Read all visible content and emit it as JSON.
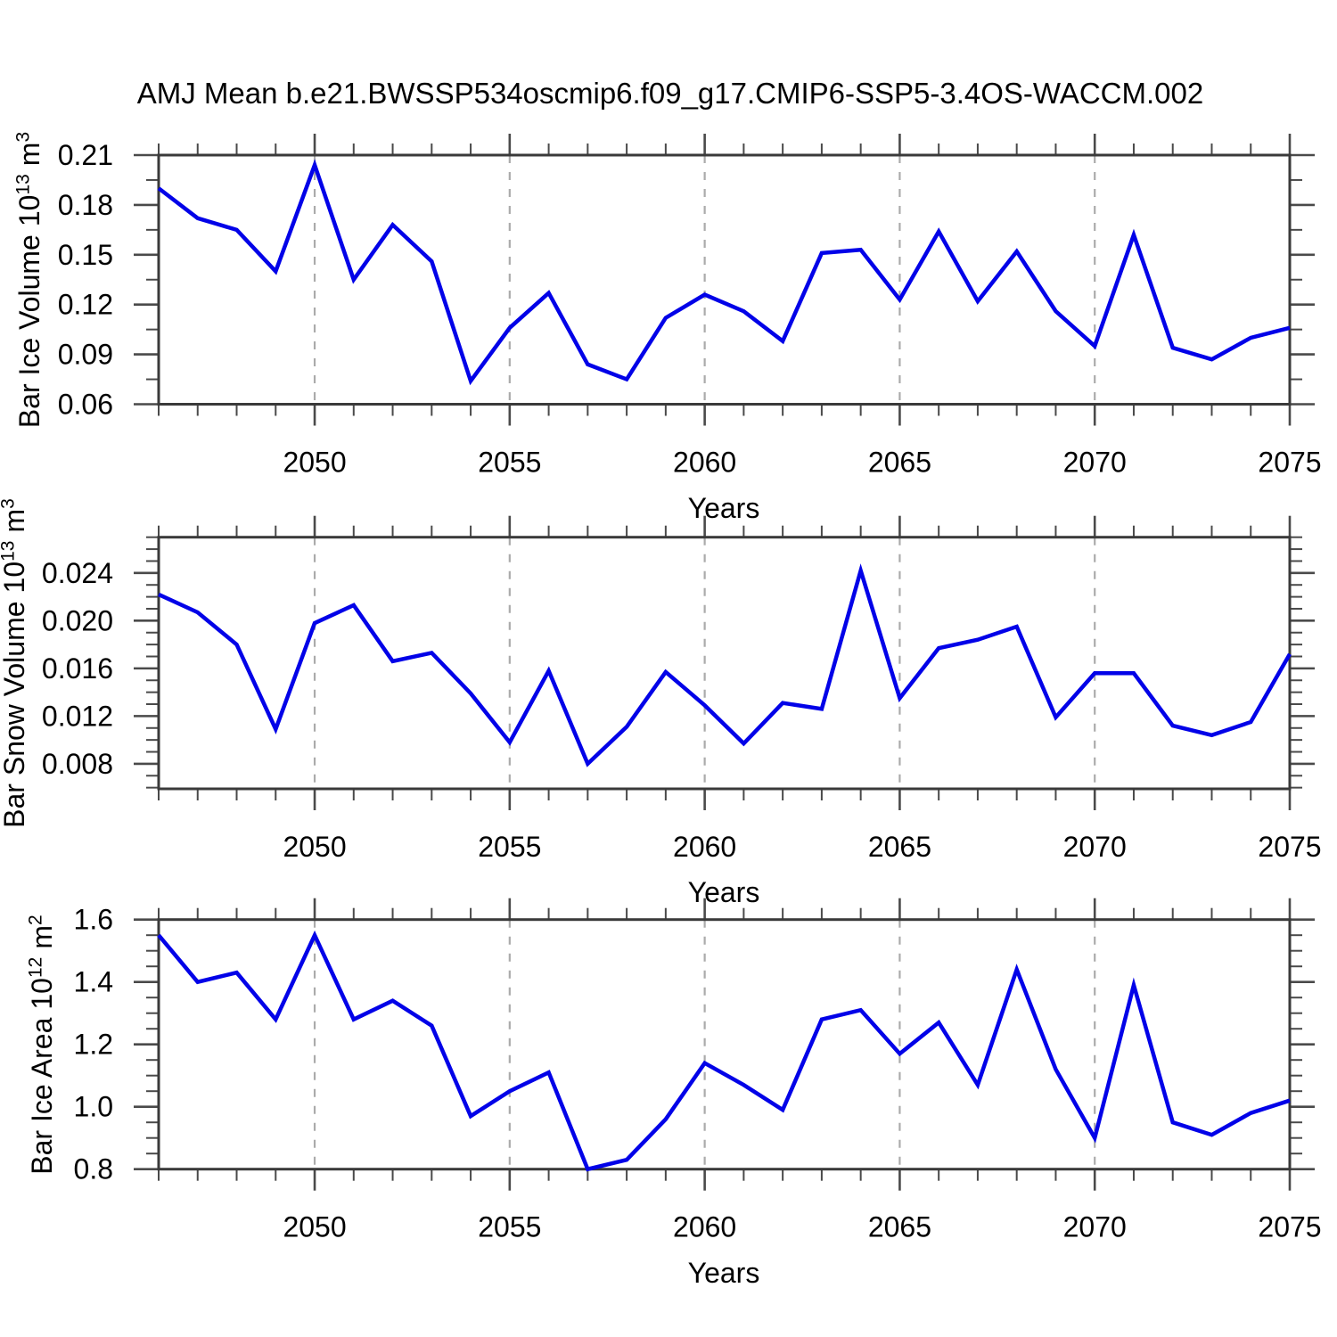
{
  "title": "AMJ Mean b.e21.BWSSP534oscmip6.f09_g17.CMIP6-SSP5-3.4OS-WACCM.002",
  "line_color": "#0202e8",
  "grid_color": "#ababab",
  "axis_color": "#3a3a3a",
  "chart_data": [
    {
      "type": "line",
      "xlabel": "Years",
      "ylabel_text": "Bar Ice Volume",
      "ylabel_exp_base": "10",
      "ylabel_exp": "13",
      "ylabel_unit": "m",
      "ylabel_unit_exp": "3",
      "x_start": 2046,
      "x_end": 2075,
      "x": [
        2046,
        2047,
        2048,
        2049,
        2050,
        2051,
        2052,
        2053,
        2054,
        2055,
        2056,
        2057,
        2058,
        2059,
        2060,
        2061,
        2062,
        2063,
        2064,
        2065,
        2066,
        2067,
        2068,
        2069,
        2070,
        2071,
        2072,
        2073,
        2074,
        2075
      ],
      "values": [
        0.19,
        0.172,
        0.165,
        0.14,
        0.204,
        0.135,
        0.168,
        0.146,
        0.074,
        0.106,
        0.127,
        0.084,
        0.075,
        0.112,
        0.126,
        0.116,
        0.098,
        0.151,
        0.153,
        0.123,
        0.164,
        0.122,
        0.152,
        0.116,
        0.095,
        0.162,
        0.094,
        0.087,
        0.1,
        0.106
      ],
      "ylim": [
        0.06,
        0.21
      ],
      "yticks": [
        0.06,
        0.09,
        0.12,
        0.15,
        0.18,
        0.21
      ],
      "ytick_labels": [
        "0.06",
        "0.09",
        "0.12",
        "0.15",
        "0.18",
        "0.21"
      ],
      "yminors": [
        0.075,
        0.105,
        0.135,
        0.165,
        0.195
      ],
      "xticks": [
        2050,
        2055,
        2060,
        2065,
        2070,
        2075
      ],
      "xtick_labels": [
        "2050",
        "2055",
        "2060",
        "2065",
        "2070",
        "2075"
      ],
      "grid_years": [
        2050,
        2055,
        2060,
        2065,
        2070
      ],
      "grid_on": true,
      "legend": "none"
    },
    {
      "type": "line",
      "xlabel": "Years",
      "ylabel_text": "Bar Snow Volume",
      "ylabel_exp_base": "10",
      "ylabel_exp": "13",
      "ylabel_unit": "m",
      "ylabel_unit_exp": "3",
      "x_start": 2046,
      "x_end": 2075,
      "x": [
        2046,
        2047,
        2048,
        2049,
        2050,
        2051,
        2052,
        2053,
        2054,
        2055,
        2056,
        2057,
        2058,
        2059,
        2060,
        2061,
        2062,
        2063,
        2064,
        2065,
        2066,
        2067,
        2068,
        2069,
        2070,
        2071,
        2072,
        2073,
        2074,
        2075
      ],
      "values": [
        0.0222,
        0.0207,
        0.018,
        0.0109,
        0.0198,
        0.0213,
        0.0166,
        0.0173,
        0.0139,
        0.0098,
        0.0158,
        0.008,
        0.0111,
        0.0157,
        0.0129,
        0.0097,
        0.0131,
        0.0126,
        0.0242,
        0.0135,
        0.0177,
        0.0184,
        0.0195,
        0.0119,
        0.0156,
        0.0156,
        0.0112,
        0.0104,
        0.0115,
        0.0172
      ],
      "ylim": [
        0.0059,
        0.027
      ],
      "yticks": [
        0.008,
        0.012,
        0.016,
        0.02,
        0.024
      ],
      "ytick_labels": [
        "0.008",
        "0.012",
        "0.016",
        "0.020",
        "0.024"
      ],
      "yminors": [
        0.006,
        0.007,
        0.009,
        0.01,
        0.011,
        0.013,
        0.014,
        0.015,
        0.017,
        0.018,
        0.019,
        0.021,
        0.022,
        0.023,
        0.025,
        0.026,
        0.027
      ],
      "xticks": [
        2050,
        2055,
        2060,
        2065,
        2070,
        2075
      ],
      "xtick_labels": [
        "2050",
        "2055",
        "2060",
        "2065",
        "2070",
        "2075"
      ],
      "grid_years": [
        2050,
        2055,
        2060,
        2065,
        2070
      ],
      "grid_on": true,
      "legend": "none"
    },
    {
      "type": "line",
      "xlabel": "Years",
      "ylabel_text": "Bar Ice Area",
      "ylabel_exp_base": "10",
      "ylabel_exp": "12",
      "ylabel_unit": "m",
      "ylabel_unit_exp": "2",
      "x_start": 2046,
      "x_end": 2075,
      "x": [
        2046,
        2047,
        2048,
        2049,
        2050,
        2051,
        2052,
        2053,
        2054,
        2055,
        2056,
        2057,
        2058,
        2059,
        2060,
        2061,
        2062,
        2063,
        2064,
        2065,
        2066,
        2067,
        2068,
        2069,
        2070,
        2071,
        2072,
        2073,
        2074,
        2075
      ],
      "values": [
        1.55,
        1.4,
        1.43,
        1.28,
        1.55,
        1.28,
        1.34,
        1.26,
        0.97,
        1.05,
        1.11,
        0.8,
        0.83,
        0.96,
        1.14,
        1.07,
        0.99,
        1.28,
        1.31,
        1.17,
        1.27,
        1.07,
        1.44,
        1.12,
        0.9,
        1.39,
        0.95,
        0.91,
        0.98,
        1.02
      ],
      "ylim": [
        0.8,
        1.6
      ],
      "yticks": [
        0.8,
        1.0,
        1.2,
        1.4,
        1.6
      ],
      "ytick_labels": [
        "0.8",
        "1.0",
        "1.2",
        "1.4",
        "1.6"
      ],
      "yminors": [
        0.85,
        0.9,
        0.95,
        1.05,
        1.1,
        1.15,
        1.25,
        1.3,
        1.35,
        1.45,
        1.5,
        1.55
      ],
      "xticks": [
        2050,
        2055,
        2060,
        2065,
        2070,
        2075
      ],
      "xtick_labels": [
        "2050",
        "2055",
        "2060",
        "2065",
        "2070",
        "2075"
      ],
      "grid_years": [
        2050,
        2055,
        2060,
        2065,
        2070
      ],
      "grid_on": true,
      "legend": "none"
    }
  ]
}
